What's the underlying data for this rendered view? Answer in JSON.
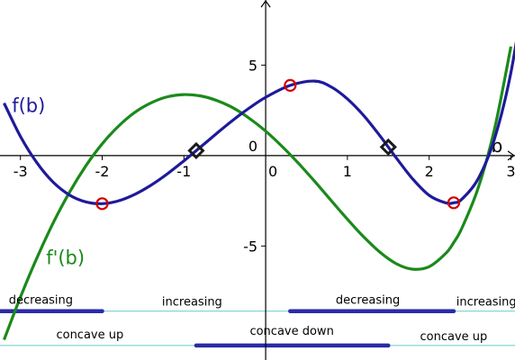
{
  "chart_data": {
    "type": "line",
    "xlabel": "b",
    "ylabel": "",
    "xlim": [
      -3.25,
      3.05
    ],
    "ylim": [
      -11.3,
      8.6
    ],
    "x_ticks": [
      -3,
      -2,
      -1,
      0,
      1,
      2,
      3
    ],
    "y_ticks": [
      -5,
      5
    ],
    "y_tick_zero_label": "0",
    "series": [
      {
        "name": "f(b)",
        "color": "#1f1a9a",
        "x": [
          -3.2,
          -3.0,
          -2.8,
          -2.6,
          -2.4,
          -2.2,
          -2.0,
          -1.8,
          -1.6,
          -1.4,
          -1.2,
          -1.0,
          -0.8,
          -0.6,
          -0.4,
          -0.2,
          0.0,
          0.3,
          0.6,
          0.8,
          1.0,
          1.2,
          1.4,
          1.6,
          1.8,
          2.0,
          2.2,
          2.3,
          2.4,
          2.6,
          2.8,
          3.0,
          3.2
        ],
        "y": [
          2.9,
          1.06,
          -0.39,
          -1.47,
          -2.18,
          -2.56,
          -2.66,
          -2.5,
          -2.14,
          -1.63,
          -1.0,
          -0.29,
          0.46,
          1.22,
          1.96,
          2.63,
          3.22,
          3.88,
          4.12,
          3.8,
          3.13,
          2.21,
          1.08,
          -0.14,
          -1.3,
          -2.2,
          -2.61,
          -2.61,
          -2.41,
          -1.28,
          0.94,
          4.6,
          10.08
        ]
      },
      {
        "name": "f'(b)",
        "color": "#1a8a1a",
        "x": [
          -3.2,
          -3.0,
          -2.8,
          -2.6,
          -2.4,
          -2.2,
          -2.0,
          -1.8,
          -1.6,
          -1.4,
          -1.2,
          -1.0,
          -0.8,
          -0.6,
          -0.4,
          -0.2,
          0.0,
          0.2,
          0.4,
          0.6,
          0.8,
          1.0,
          1.2,
          1.4,
          1.6,
          1.8,
          2.0,
          2.2,
          2.3,
          2.4,
          2.6,
          2.8,
          3.0
        ],
        "y": [
          -10.18,
          -7.82,
          -5.67,
          -3.73,
          -2.03,
          -0.57,
          0.65,
          1.63,
          2.39,
          2.92,
          3.25,
          3.37,
          3.3,
          3.05,
          2.64,
          2.06,
          1.35,
          0.51,
          -0.42,
          -1.43,
          -2.48,
          -3.52,
          -4.5,
          -5.35,
          -5.98,
          -6.28,
          -6.14,
          -5.42,
          -4.81,
          -4.01,
          -1.79,
          1.48,
          6.03
        ]
      }
    ],
    "points": [
      {
        "name": "local minimum",
        "x": -2.0,
        "y": -2.66,
        "shape": "circle",
        "color": "#d40000"
      },
      {
        "name": "local maximum",
        "x": 0.3,
        "y": 3.88,
        "shape": "circle",
        "color": "#d40000"
      },
      {
        "name": "local minimum",
        "x": 2.3,
        "y": -2.61,
        "shape": "circle",
        "color": "#d40000"
      },
      {
        "name": "inflection point",
        "x": -0.85,
        "y": 0.27,
        "shape": "diamond",
        "color": "#1a1a1a"
      },
      {
        "name": "inflection point",
        "x": 1.5,
        "y": 0.47,
        "shape": "diamond",
        "color": "#1a1a1a"
      }
    ],
    "interval_lines": [
      {
        "y": -8.6,
        "color": "#66cccc"
      },
      {
        "y": -10.5,
        "color": "#66cccc"
      }
    ],
    "interval_bars": [
      {
        "y": -8.6,
        "from": -3.25,
        "to": -2.0,
        "color": "#2a2aa8"
      },
      {
        "y": -8.6,
        "from": 0.3,
        "to": 2.3,
        "color": "#2a2aa8"
      },
      {
        "y": -10.5,
        "from": -0.85,
        "to": 1.5,
        "color": "#2a2aa8"
      }
    ],
    "annotations": [
      {
        "text": "decreasing",
        "x": -2.75,
        "y": -8.2
      },
      {
        "text": "increasing",
        "x": -0.9,
        "y": -8.3
      },
      {
        "text": "decreasing",
        "x": 1.25,
        "y": -8.2
      },
      {
        "text": "increasing",
        "x": 2.7,
        "y": -8.3
      },
      {
        "text": "concave up",
        "x": -2.15,
        "y": -10.1
      },
      {
        "text": "concave down",
        "x": 0.32,
        "y": -9.9
      },
      {
        "text": "concave up",
        "x": 2.3,
        "y": -10.2
      }
    ],
    "function_labels": [
      {
        "text": "f(b)",
        "x": -2.9,
        "y": 2.4,
        "color": "#1f1a9a"
      },
      {
        "text": "f'(b)",
        "x": -2.45,
        "y": -6.0,
        "color": "#1a8a1a"
      }
    ]
  }
}
